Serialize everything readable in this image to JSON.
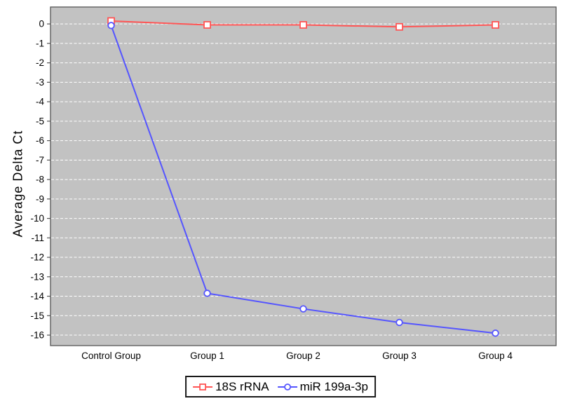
{
  "chart_data": {
    "type": "line",
    "title": "",
    "xlabel": "",
    "ylabel": "Average Delta Ct",
    "categories": [
      "Control Group",
      "Group 1",
      "Group 2",
      "Group 3",
      "Group 4"
    ],
    "series": [
      {
        "name": "18S rRNA",
        "color": "#ff5555",
        "marker": "square",
        "values": [
          0.15,
          -0.05,
          -0.05,
          -0.15,
          -0.05
        ]
      },
      {
        "name": "miR 199a-3p",
        "color": "#5555ff",
        "marker": "circle",
        "values": [
          -0.08,
          -13.85,
          -14.65,
          -15.35,
          -15.9
        ]
      }
    ],
    "yticks": [
      0,
      -1,
      -2,
      -3,
      -4,
      -5,
      -6,
      -7,
      -8,
      -9,
      -10,
      -11,
      -12,
      -13,
      -14,
      -15,
      -16
    ],
    "ylim": [
      0.87,
      -16.54
    ],
    "grid": "horizontal-dashed-white",
    "legend_position": "bottom",
    "colors": {
      "plot_bg": "#c2c2c2",
      "grid": "#ffffff",
      "border": "#555555",
      "marker_fill": "#ffffff",
      "text": "#000000",
      "legend_border": "#1a1a1a",
      "legend_bg": "#ffffff"
    }
  }
}
